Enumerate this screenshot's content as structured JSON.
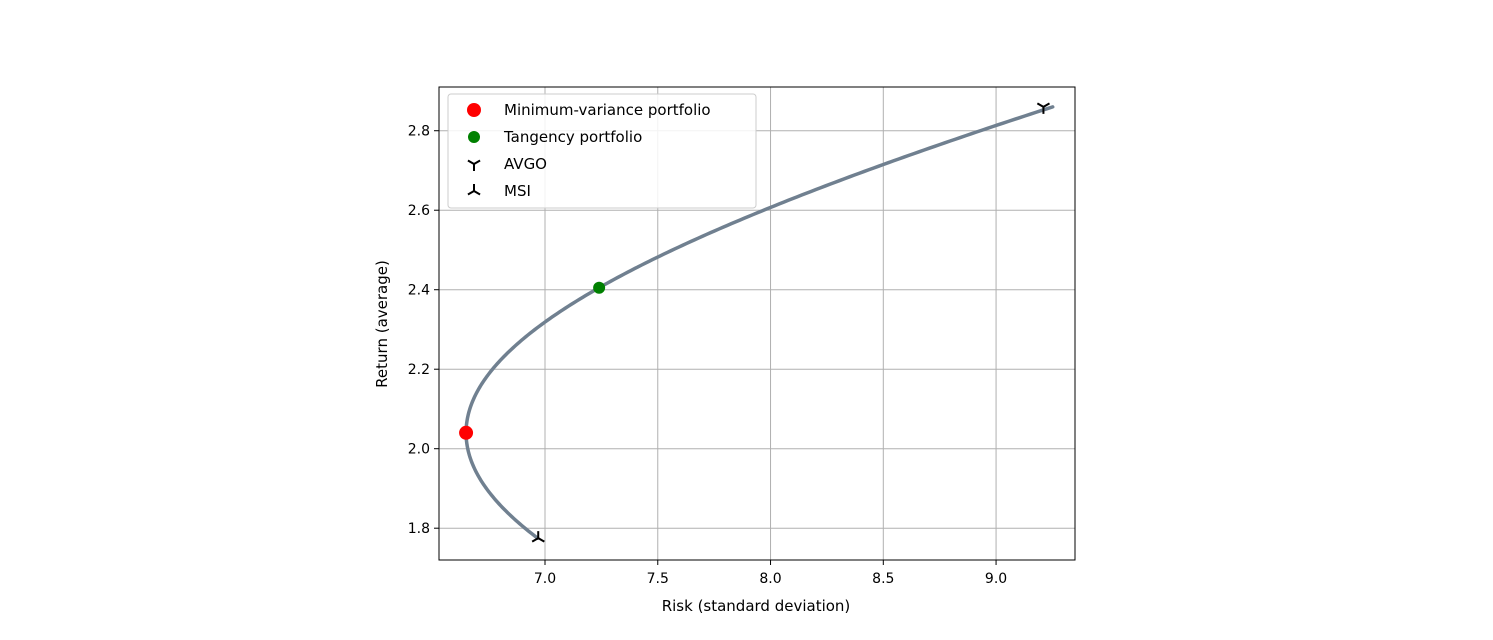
{
  "chart_data": {
    "type": "line",
    "xlabel": "Risk (standard deviation)",
    "ylabel": "Return (average)",
    "xlim": [
      6.53,
      9.35
    ],
    "ylim": [
      1.72,
      2.91
    ],
    "xticks": [
      7.0,
      7.5,
      8.0,
      8.5,
      9.0
    ],
    "xtick_labels": [
      "7.0",
      "7.5",
      "8.0",
      "8.5",
      "9.0"
    ],
    "yticks": [
      1.8,
      2.0,
      2.2,
      2.4,
      2.6,
      2.8
    ],
    "ytick_labels": [
      "1.8",
      "2.0",
      "2.2",
      "2.4",
      "2.6",
      "2.8"
    ],
    "grid": true,
    "legend_position": "upper-left",
    "frontier": {
      "color": "#708090",
      "min_variance": {
        "x": 6.65,
        "y": 2.04
      },
      "shape_anchor": {
        "x": 7.24,
        "y": 2.405
      },
      "y_range": [
        1.775,
        2.86
      ]
    },
    "points": [
      {
        "name": "Minimum-variance portfolio",
        "x": 6.65,
        "y": 2.04,
        "marker": "circle",
        "color": "#ff0000",
        "size": "large"
      },
      {
        "name": "Tangency portfolio",
        "x": 7.24,
        "y": 2.405,
        "marker": "circle",
        "color": "#008000",
        "size": "small"
      },
      {
        "name": "AVGO",
        "x": 9.21,
        "y": 2.86,
        "marker": "tri_down",
        "color": "#000000"
      },
      {
        "name": "MSI",
        "x": 6.97,
        "y": 1.775,
        "marker": "tri_up",
        "color": "#000000"
      }
    ],
    "legend": [
      "Minimum-variance portfolio",
      "Tangency portfolio",
      "AVGO",
      "MSI"
    ]
  }
}
